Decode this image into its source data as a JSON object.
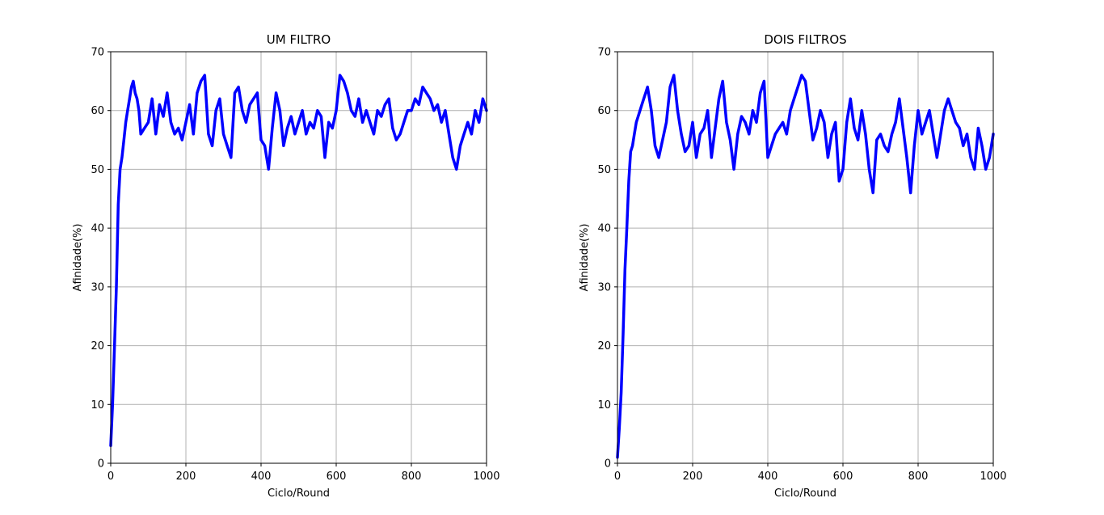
{
  "chart_data": [
    {
      "type": "line",
      "title": "UM FILTRO",
      "xlabel": "Ciclo/Round",
      "ylabel": "Afinidade(%)",
      "xlim": [
        0,
        1000
      ],
      "ylim": [
        0,
        70
      ],
      "xticks": [
        "0",
        "200",
        "400",
        "600",
        "800",
        "1000"
      ],
      "yticks": [
        "0",
        "10",
        "20",
        "30",
        "40",
        "50",
        "60",
        "70"
      ],
      "grid": true,
      "series": [
        {
          "color": "#0000ff",
          "x": [
            0,
            5,
            10,
            15,
            20,
            25,
            30,
            35,
            40,
            45,
            50,
            55,
            60,
            65,
            70,
            75,
            80,
            90,
            100,
            110,
            120,
            130,
            140,
            150,
            160,
            170,
            180,
            190,
            200,
            210,
            220,
            230,
            240,
            250,
            260,
            270,
            280,
            290,
            300,
            310,
            320,
            330,
            340,
            350,
            360,
            370,
            380,
            390,
            400,
            410,
            420,
            430,
            440,
            450,
            460,
            470,
            480,
            490,
            500,
            510,
            520,
            530,
            540,
            550,
            560,
            570,
            580,
            590,
            600,
            610,
            620,
            630,
            640,
            650,
            660,
            670,
            680,
            690,
            700,
            710,
            720,
            730,
            740,
            750,
            760,
            770,
            780,
            790,
            800,
            810,
            820,
            830,
            840,
            850,
            860,
            870,
            880,
            890,
            900,
            910,
            920,
            930,
            940,
            950,
            960,
            970,
            980,
            990,
            1000
          ],
          "values": [
            3,
            10,
            20,
            30,
            44,
            50,
            52,
            55,
            58,
            60,
            62,
            64,
            65,
            63,
            62,
            60,
            56,
            57,
            58,
            62,
            56,
            61,
            59,
            63,
            58,
            56,
            57,
            55,
            58,
            61,
            56,
            63,
            65,
            66,
            56,
            54,
            60,
            62,
            56,
            54,
            52,
            63,
            64,
            60,
            58,
            61,
            62,
            63,
            55,
            54,
            50,
            57,
            63,
            60,
            54,
            57,
            59,
            56,
            58,
            60,
            56,
            58,
            57,
            60,
            59,
            52,
            58,
            57,
            60,
            66,
            65,
            63,
            60,
            59,
            62,
            58,
            60,
            58,
            56,
            60,
            59,
            61,
            62,
            57,
            55,
            56,
            58,
            60,
            60,
            62,
            61,
            64,
            63,
            62,
            60,
            61,
            58,
            60,
            56,
            52,
            50,
            54,
            56,
            58,
            56,
            60,
            58,
            62,
            60
          ]
        }
      ]
    },
    {
      "type": "line",
      "title": "DOIS FILTROS",
      "xlabel": "Ciclo/Round",
      "ylabel": "Afinidade(%)",
      "xlim": [
        0,
        1000
      ],
      "ylim": [
        0,
        70
      ],
      "xticks": [
        "0",
        "200",
        "400",
        "600",
        "800",
        "1000"
      ],
      "yticks": [
        "0",
        "10",
        "20",
        "30",
        "40",
        "50",
        "60",
        "70"
      ],
      "grid": true,
      "series": [
        {
          "color": "#0000ff",
          "x": [
            0,
            5,
            10,
            15,
            20,
            25,
            30,
            35,
            40,
            45,
            50,
            55,
            60,
            65,
            70,
            75,
            80,
            90,
            100,
            110,
            120,
            130,
            140,
            150,
            160,
            170,
            180,
            190,
            200,
            210,
            220,
            230,
            240,
            250,
            260,
            270,
            280,
            290,
            300,
            310,
            320,
            330,
            340,
            350,
            360,
            370,
            380,
            390,
            400,
            410,
            420,
            430,
            440,
            450,
            460,
            470,
            480,
            490,
            500,
            510,
            520,
            530,
            540,
            550,
            560,
            570,
            580,
            590,
            600,
            610,
            620,
            630,
            640,
            650,
            660,
            670,
            680,
            690,
            700,
            710,
            720,
            730,
            740,
            750,
            760,
            770,
            780,
            790,
            800,
            810,
            820,
            830,
            840,
            850,
            860,
            870,
            880,
            890,
            900,
            910,
            920,
            930,
            940,
            950,
            960,
            970,
            980,
            990,
            1000
          ],
          "values": [
            1,
            6,
            12,
            22,
            33,
            40,
            48,
            53,
            54,
            56,
            58,
            59,
            60,
            61,
            62,
            63,
            64,
            60,
            54,
            52,
            55,
            58,
            64,
            66,
            60,
            56,
            53,
            54,
            58,
            52,
            56,
            57,
            60,
            52,
            57,
            62,
            65,
            58,
            55,
            50,
            56,
            59,
            58,
            56,
            60,
            58,
            63,
            65,
            52,
            54,
            56,
            57,
            58,
            56,
            60,
            62,
            64,
            66,
            65,
            60,
            55,
            57,
            60,
            58,
            52,
            56,
            58,
            48,
            50,
            58,
            62,
            57,
            55,
            60,
            56,
            50,
            46,
            55,
            56,
            54,
            53,
            56,
            58,
            62,
            57,
            52,
            46,
            54,
            60,
            56,
            58,
            60,
            56,
            52,
            56,
            60,
            62,
            60,
            58,
            57,
            54,
            56,
            52,
            50,
            57,
            54,
            50,
            52,
            56
          ]
        }
      ]
    }
  ]
}
